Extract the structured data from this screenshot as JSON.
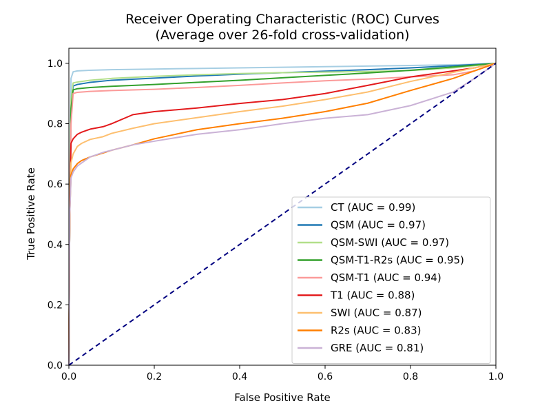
{
  "chart_data": {
    "type": "line",
    "title": "Receiver Operating Characteristic (ROC) Curves",
    "subtitle": "(Average over 26-fold cross-validation)",
    "xlabel": "False Positive Rate",
    "ylabel": "True Positive Rate",
    "xlim": [
      0.0,
      1.0
    ],
    "ylim": [
      0.0,
      1.05
    ],
    "xticks": [
      "0.0",
      "0.2",
      "0.4",
      "0.6",
      "0.8",
      "1.0"
    ],
    "yticks": [
      "0.0",
      "0.2",
      "0.4",
      "0.6",
      "0.8",
      "1.0"
    ],
    "xtick_values": [
      0.0,
      0.2,
      0.4,
      0.6,
      0.8,
      1.0
    ],
    "ytick_values": [
      0.0,
      0.2,
      0.4,
      0.6,
      0.8,
      1.0
    ],
    "grid": false,
    "legend_position": "lower-right",
    "diagonal": {
      "x": [
        0,
        1
      ],
      "y": [
        0,
        1
      ],
      "color": "#000080",
      "style": "dashed"
    },
    "series": [
      {
        "name": "CT",
        "label": "CT (AUC = 0.99)",
        "color": "#a6cee3",
        "x": [
          0,
          0.002,
          0.005,
          0.01,
          0.02,
          0.05,
          0.1,
          0.2,
          0.3,
          0.4,
          0.5,
          0.6,
          0.7,
          0.8,
          0.9,
          0.95,
          1.0
        ],
        "y": [
          0,
          0.5,
          0.95,
          0.972,
          0.975,
          0.977,
          0.979,
          0.981,
          0.983,
          0.985,
          0.987,
          0.989,
          0.991,
          0.993,
          0.995,
          0.997,
          1.0
        ]
      },
      {
        "name": "QSM",
        "label": "QSM (AUC = 0.97)",
        "color": "#1f78b4",
        "x": [
          0,
          0.002,
          0.005,
          0.01,
          0.02,
          0.05,
          0.1,
          0.2,
          0.3,
          0.4,
          0.5,
          0.6,
          0.7,
          0.8,
          0.9,
          0.95,
          1.0
        ],
        "y": [
          0,
          0.5,
          0.85,
          0.925,
          0.93,
          0.937,
          0.944,
          0.951,
          0.958,
          0.964,
          0.969,
          0.974,
          0.979,
          0.985,
          0.992,
          0.996,
          1.0
        ]
      },
      {
        "name": "QSM-SWI",
        "label": "QSM-SWI (AUC = 0.97)",
        "color": "#b2df8a",
        "x": [
          0,
          0.002,
          0.005,
          0.01,
          0.02,
          0.05,
          0.1,
          0.2,
          0.3,
          0.4,
          0.5,
          0.6,
          0.7,
          0.8,
          0.9,
          0.95,
          1.0
        ],
        "y": [
          0,
          0.5,
          0.88,
          0.935,
          0.938,
          0.944,
          0.95,
          0.957,
          0.962,
          0.966,
          0.969,
          0.971,
          0.973,
          0.976,
          0.985,
          0.992,
          1.0
        ]
      },
      {
        "name": "QSM-T1-R2s",
        "label": "QSM-T1-R2s (AUC = 0.95)",
        "color": "#33a02c",
        "x": [
          0,
          0.002,
          0.005,
          0.01,
          0.02,
          0.05,
          0.1,
          0.2,
          0.3,
          0.4,
          0.5,
          0.6,
          0.7,
          0.8,
          0.9,
          0.95,
          1.0
        ],
        "y": [
          0,
          0.5,
          0.85,
          0.912,
          0.916,
          0.92,
          0.924,
          0.93,
          0.937,
          0.944,
          0.952,
          0.96,
          0.968,
          0.977,
          0.988,
          0.994,
          1.0
        ]
      },
      {
        "name": "QSM-T1",
        "label": "QSM-T1 (AUC = 0.94)",
        "color": "#fb9a99",
        "x": [
          0,
          0.002,
          0.005,
          0.01,
          0.02,
          0.05,
          0.1,
          0.2,
          0.3,
          0.4,
          0.5,
          0.6,
          0.7,
          0.8,
          0.9,
          0.95,
          1.0
        ],
        "y": [
          0,
          0.5,
          0.8,
          0.9,
          0.904,
          0.907,
          0.91,
          0.914,
          0.92,
          0.927,
          0.935,
          0.942,
          0.948,
          0.955,
          0.962,
          0.975,
          1.0
        ]
      },
      {
        "name": "T1",
        "label": "T1 (AUC = 0.88)",
        "color": "#e31a1c",
        "x": [
          0,
          0.002,
          0.005,
          0.01,
          0.02,
          0.03,
          0.05,
          0.08,
          0.1,
          0.15,
          0.2,
          0.3,
          0.4,
          0.5,
          0.6,
          0.7,
          0.8,
          0.9,
          0.95,
          1.0
        ],
        "y": [
          0,
          0.5,
          0.735,
          0.75,
          0.765,
          0.772,
          0.782,
          0.79,
          0.8,
          0.83,
          0.84,
          0.852,
          0.867,
          0.88,
          0.9,
          0.927,
          0.955,
          0.975,
          0.985,
          1.0
        ]
      },
      {
        "name": "SWI",
        "label": "SWI (AUC = 0.87)",
        "color": "#fdbf6f",
        "x": [
          0,
          0.002,
          0.005,
          0.01,
          0.02,
          0.03,
          0.05,
          0.08,
          0.1,
          0.15,
          0.2,
          0.3,
          0.4,
          0.5,
          0.6,
          0.7,
          0.8,
          0.9,
          0.95,
          1.0
        ],
        "y": [
          0,
          0.5,
          0.67,
          0.7,
          0.725,
          0.735,
          0.748,
          0.757,
          0.768,
          0.785,
          0.8,
          0.82,
          0.84,
          0.858,
          0.88,
          0.905,
          0.94,
          0.97,
          0.985,
          1.0
        ]
      },
      {
        "name": "R2s",
        "label": "R2s (AUC = 0.83)",
        "color": "#ff7f00",
        "x": [
          0,
          0.002,
          0.005,
          0.01,
          0.02,
          0.03,
          0.05,
          0.08,
          0.1,
          0.15,
          0.2,
          0.3,
          0.4,
          0.5,
          0.6,
          0.7,
          0.8,
          0.9,
          0.95,
          1.0
        ],
        "y": [
          0,
          0.5,
          0.63,
          0.65,
          0.668,
          0.678,
          0.69,
          0.703,
          0.712,
          0.73,
          0.75,
          0.78,
          0.8,
          0.818,
          0.84,
          0.868,
          0.91,
          0.95,
          0.975,
          1.0
        ]
      },
      {
        "name": "GRE",
        "label": "GRE (AUC = 0.81)",
        "color": "#cab2d6",
        "x": [
          0,
          0.002,
          0.005,
          0.01,
          0.02,
          0.03,
          0.05,
          0.08,
          0.1,
          0.15,
          0.2,
          0.3,
          0.4,
          0.5,
          0.6,
          0.7,
          0.8,
          0.9,
          0.95,
          1.0
        ],
        "y": [
          0,
          0.5,
          0.62,
          0.64,
          0.66,
          0.67,
          0.69,
          0.705,
          0.712,
          0.73,
          0.742,
          0.765,
          0.78,
          0.8,
          0.818,
          0.83,
          0.86,
          0.905,
          0.95,
          1.0
        ]
      }
    ]
  }
}
